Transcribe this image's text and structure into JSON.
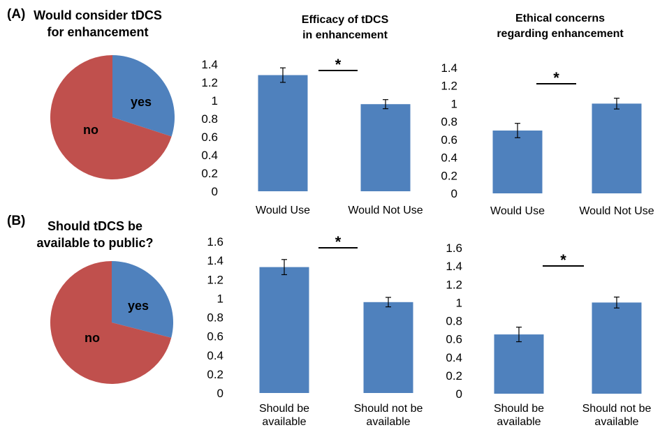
{
  "panels": [
    {
      "label": "(A)",
      "pie": {
        "title": [
          "Would consider tDCS",
          "for  enhancement"
        ],
        "slices": [
          {
            "label": "yes",
            "value": 30,
            "color": "#4f81bd"
          },
          {
            "label": "no",
            "value": 70,
            "color": "#c0504d"
          }
        ]
      }
    },
    {
      "label": "(B)",
      "pie": {
        "title": [
          "Should tDCS be",
          "available to public?"
        ],
        "slices": [
          {
            "label": "yes",
            "value": 29,
            "color": "#4f81bd"
          },
          {
            "label": "no",
            "value": 71,
            "color": "#c0504d"
          }
        ]
      }
    }
  ],
  "chart_data": [
    {
      "type": "pie",
      "panel": "(A)",
      "title": "Would consider tDCS for  enhancement",
      "slices": [
        {
          "label": "yes",
          "value": 30
        },
        {
          "label": "no",
          "value": 70
        }
      ]
    },
    {
      "type": "bar",
      "panel": "(A)",
      "title": "Efficacy of tDCS in enhancement",
      "title_lines": [
        "Efficacy of tDCS",
        "in enhancement"
      ],
      "categories": [
        [
          "Would Use"
        ],
        [
          "Would Not Use"
        ]
      ],
      "values": [
        1.28,
        0.96
      ],
      "errors": [
        0.08,
        0.05
      ],
      "ylim": [
        0,
        1.4
      ],
      "yticks": [
        0,
        0.2,
        0.4,
        0.6,
        0.8,
        1,
        1.2,
        1.4
      ],
      "significance": "*",
      "bar_color": "#4f81bd"
    },
    {
      "type": "bar",
      "panel": "(A)",
      "title": "Ethical concerns regarding enhancement",
      "title_lines": [
        "Ethical concerns",
        "regarding enhancement"
      ],
      "categories": [
        [
          "Would Use"
        ],
        [
          "Would Not Use"
        ]
      ],
      "values": [
        0.7,
        1.0
      ],
      "errors": [
        0.08,
        0.06
      ],
      "ylim": [
        0,
        1.4
      ],
      "yticks": [
        0,
        0.2,
        0.4,
        0.6,
        0.8,
        1,
        1.2,
        1.4
      ],
      "significance": "*",
      "bar_color": "#4f81bd"
    },
    {
      "type": "pie",
      "panel": "(B)",
      "title": "Should tDCS be available to public?",
      "slices": [
        {
          "label": "yes",
          "value": 29
        },
        {
          "label": "no",
          "value": 71
        }
      ]
    },
    {
      "type": "bar",
      "panel": "(B)",
      "title": "",
      "title_lines": [],
      "categories": [
        [
          "Should be",
          "available"
        ],
        [
          "Should not be",
          "available"
        ]
      ],
      "values": [
        1.33,
        0.96
      ],
      "errors": [
        0.08,
        0.05
      ],
      "ylim": [
        0,
        1.6
      ],
      "yticks": [
        0,
        0.2,
        0.4,
        0.6,
        0.8,
        1,
        1.2,
        1.4,
        1.6
      ],
      "significance": "*",
      "bar_color": "#4f81bd"
    },
    {
      "type": "bar",
      "panel": "(B)",
      "title": "",
      "title_lines": [],
      "categories": [
        [
          "Should be",
          "available"
        ],
        [
          "Should not be",
          "available"
        ]
      ],
      "values": [
        0.65,
        1.0
      ],
      "errors": [
        0.08,
        0.06
      ],
      "ylim": [
        0,
        1.6
      ],
      "yticks": [
        0,
        0.2,
        0.4,
        0.6,
        0.8,
        1,
        1.2,
        1.4,
        1.6
      ],
      "significance": "*",
      "bar_color": "#4f81bd"
    }
  ]
}
